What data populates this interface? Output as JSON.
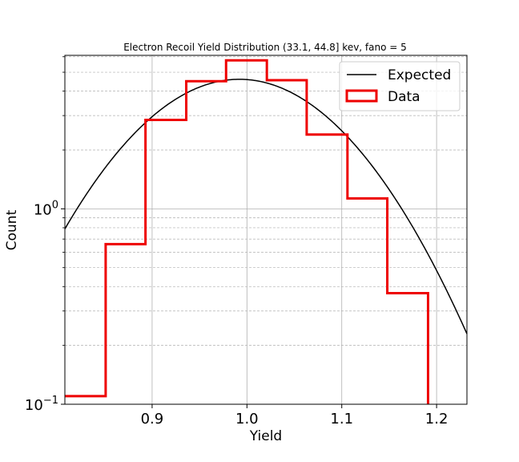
{
  "chart_data": {
    "type": "histogram-step-with-line",
    "title": "Electron Recoil Yield Distribution (33.1, 44.8] kev, fano = 5",
    "xlabel": "Yield",
    "ylabel": "Count",
    "xlim": [
      0.808,
      1.232
    ],
    "ylim": [
      0.1,
      6.1
    ],
    "yscale": "log",
    "x_ticks": [
      0.9,
      1.0,
      1.1,
      1.2
    ],
    "x_tick_labels": [
      "0.9",
      "1.0",
      "1.1",
      "1.2"
    ],
    "y_ticks": [
      0.1,
      1.0
    ],
    "y_tick_labels": [
      {
        "base": "10",
        "exp": "−1"
      },
      {
        "base": "10",
        "exp": "0"
      }
    ],
    "grid": true,
    "legend_position": "top-right",
    "series": [
      {
        "name": "Expected",
        "kind": "line",
        "color": "#000000",
        "peak_x": 0.992,
        "peak_y": 4.6,
        "sigma": 0.098
      },
      {
        "name": "Data",
        "kind": "step-histogram",
        "color": "#ee0000",
        "bin_edges": [
          0.808,
          0.851,
          0.893,
          0.936,
          0.978,
          1.021,
          1.063,
          1.106,
          1.148,
          1.191
        ],
        "values": [
          0.11,
          0.66,
          2.85,
          4.5,
          5.75,
          4.55,
          2.4,
          1.13,
          0.37
        ]
      }
    ]
  }
}
